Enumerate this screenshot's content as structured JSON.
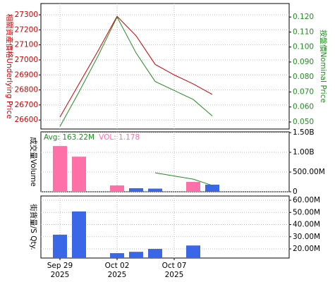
{
  "chart_data": [
    {
      "type": "line",
      "y_label": "相關資產價格Underlying Price",
      "y2_label": "按盤價Nominal Price",
      "categories": [
        "Sep 29\n2025",
        null,
        null,
        "Oct 02\n2025",
        null,
        null,
        "Oct 07\n2025",
        null,
        null
      ],
      "series": [
        {
          "name": "Underlying Price",
          "color": "#cc0000",
          "values": [
            26620,
            26840,
            27060,
            27290,
            27160,
            26970,
            26900,
            26840,
            26770
          ]
        },
        {
          "name": "Nominal Price",
          "color": "#228b22",
          "axis": "y2",
          "values": [
            0.047,
            0.07,
            0.094,
            0.12,
            0.096,
            0.077,
            0.071,
            0.065,
            0.054
          ]
        }
      ],
      "ylim": [
        26540,
        27375
      ],
      "yticks": [
        26600,
        26700,
        26800,
        26900,
        27000,
        27100,
        27200,
        27300
      ],
      "y2lim": [
        0.0453,
        0.129
      ],
      "y2ticks": [
        {
          "value": 0.05,
          "label": "0.050"
        },
        {
          "value": 0.06,
          "label": "0.060"
        },
        {
          "value": 0.07,
          "label": "0.070"
        },
        {
          "value": 0.08,
          "label": "0.080"
        },
        {
          "value": 0.09,
          "label": "0.090"
        },
        {
          "value": 0.1,
          "label": "0.100"
        },
        {
          "value": 0.11,
          "label": "0.110"
        },
        {
          "value": 0.12,
          "label": "0.120"
        }
      ],
      "grid": true
    },
    {
      "type": "bar",
      "y_label": "成交量Volume",
      "annotations": [
        {
          "text": "Avg: 163.22M",
          "color": "#228b22"
        },
        {
          "text": "VOL: 1.178",
          "color": "#ff6fa8"
        }
      ],
      "series": [
        {
          "values": [
            1160000000,
            890000000,
            null,
            160000000,
            90000000,
            80000000,
            null,
            250000000,
            180000000
          ],
          "colors": [
            "#ff6fa8",
            "#ff6fa8",
            null,
            "#ff6fa8",
            "#3a66e8",
            "#3a66e8",
            null,
            "#ff6fa8",
            "#3a66e8"
          ]
        },
        {
          "type": "line",
          "color": "#228b22",
          "values": [
            null,
            null,
            null,
            null,
            null,
            480000000,
            400000000,
            320000000,
            160000000
          ]
        }
      ],
      "ylim": [
        0,
        1520000000
      ],
      "yticks": [
        0,
        {
          "value": 500000000,
          "label": "500.00M"
        },
        {
          "value": 1000000000,
          "label": "1.00B"
        },
        {
          "value": 1500000000,
          "label": "1.50B"
        }
      ],
      "grid": true
    },
    {
      "type": "bar",
      "y_label": "街貨量/S Qty.",
      "series": [
        {
          "values": [
            31700000,
            50800000,
            null,
            16500000,
            17600000,
            20000000,
            null,
            22800000,
            null
          ],
          "color": "#3a66e8"
        }
      ],
      "ylim": [
        12500000,
        63500000
      ],
      "yticks": [
        {
          "value": 20000000,
          "label": "20.00M"
        },
        {
          "value": 30000000,
          "label": "30.00M"
        },
        {
          "value": 40000000,
          "label": "40.00M"
        },
        {
          "value": 50000000,
          "label": "50.00M"
        },
        {
          "value": 60000000,
          "label": "60.00M"
        }
      ],
      "grid": true
    }
  ]
}
